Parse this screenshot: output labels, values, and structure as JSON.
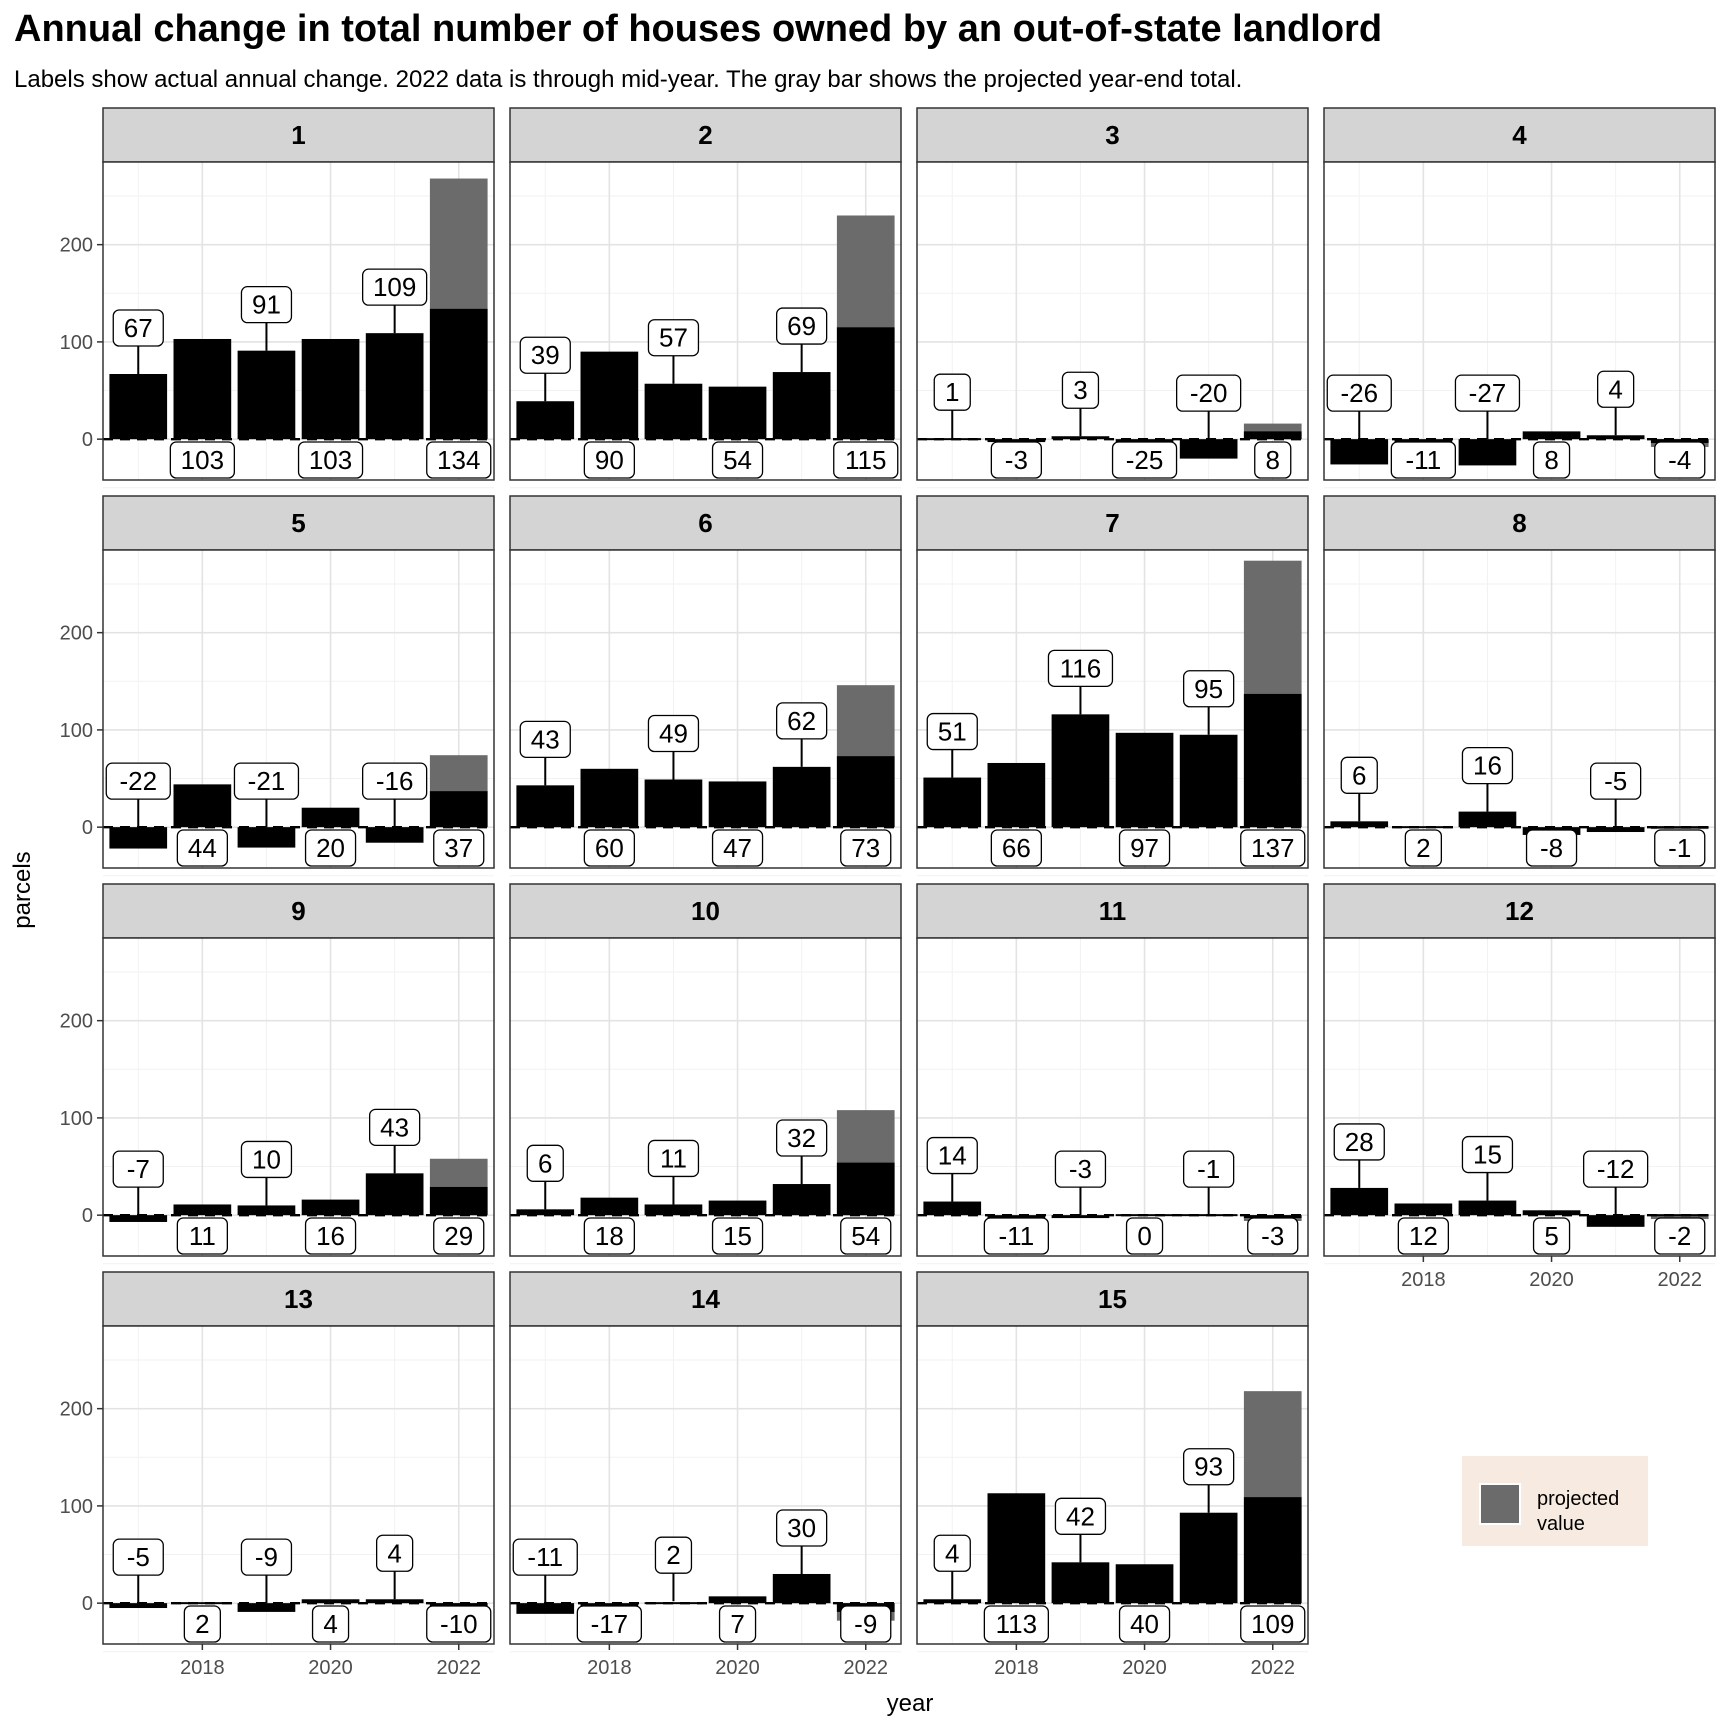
{
  "chart_data": {
    "type": "bar",
    "title": "Annual change in total number of houses owned by an out-of-state landlord",
    "subtitle": "Labels show actual annual change. 2022 data is through mid-year. The gray bar shows the projected year-end total.",
    "xlabel": "year",
    "ylabel": "parcels",
    "x": [
      2017,
      2018,
      2019,
      2020,
      2021,
      2022
    ],
    "x_ticks": [
      2018,
      2020,
      2022
    ],
    "y_ticks": [
      0,
      100,
      200
    ],
    "ylim": [
      -42,
      285
    ],
    "grid": true,
    "legend": {
      "position": "bottom-right",
      "entries": [
        {
          "label": "projected value",
          "color": "#6b6b6b"
        }
      ]
    },
    "colors": {
      "actual": "#000000",
      "projected": "#6b6b6b",
      "strip": "#d4d4d4",
      "legend_bg": "#f7ebe1"
    },
    "panels": [
      {
        "id": "1",
        "values": [
          67,
          103,
          91,
          103,
          109,
          134
        ],
        "projected_2022": 268
      },
      {
        "id": "2",
        "values": [
          39,
          90,
          57,
          54,
          69,
          115
        ],
        "projected_2022": 230
      },
      {
        "id": "3",
        "values": [
          1,
          -3,
          3,
          -25,
          -20,
          8
        ],
        "projected_2022": 16
      },
      {
        "id": "4",
        "values": [
          -26,
          -11,
          -27,
          8,
          4,
          -4
        ],
        "projected_2022": -8
      },
      {
        "id": "5",
        "values": [
          -22,
          44,
          -21,
          20,
          -16,
          37
        ],
        "projected_2022": 74
      },
      {
        "id": "6",
        "values": [
          43,
          60,
          49,
          47,
          62,
          73
        ],
        "projected_2022": 146
      },
      {
        "id": "7",
        "values": [
          51,
          66,
          116,
          97,
          95,
          137
        ],
        "projected_2022": 274
      },
      {
        "id": "8",
        "values": [
          6,
          2,
          16,
          -8,
          -5,
          -1
        ],
        "projected_2022": -2
      },
      {
        "id": "9",
        "values": [
          -7,
          11,
          10,
          16,
          43,
          29
        ],
        "projected_2022": 58
      },
      {
        "id": "10",
        "values": [
          6,
          18,
          11,
          15,
          32,
          54
        ],
        "projected_2022": 108
      },
      {
        "id": "11",
        "values": [
          14,
          -11,
          -3,
          0,
          -1,
          -3
        ],
        "projected_2022": -6
      },
      {
        "id": "12",
        "values": [
          28,
          12,
          15,
          5,
          -12,
          -2
        ],
        "projected_2022": -4
      },
      {
        "id": "13",
        "values": [
          -5,
          2,
          -9,
          4,
          4,
          -10
        ],
        "projected_2022": -20
      },
      {
        "id": "14",
        "values": [
          -11,
          -17,
          2,
          7,
          30,
          -9
        ],
        "projected_2022": -18
      },
      {
        "id": "15",
        "values": [
          4,
          113,
          42,
          40,
          93,
          109
        ],
        "projected_2022": 218
      }
    ]
  }
}
